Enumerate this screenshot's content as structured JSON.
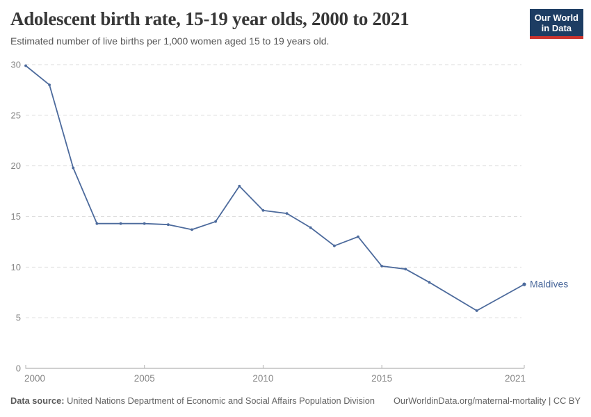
{
  "header": {
    "title": "Adolescent birth rate, 15-19 year olds, 2000 to 2021",
    "subtitle": "Estimated number of live births per 1,000 women aged 15 to 19 years old."
  },
  "logo": {
    "line1": "Our World",
    "line2": "in Data",
    "bg_color": "#1d3d63",
    "bar_color": "#cb342e"
  },
  "footer": {
    "source_label": "Data source:",
    "source_text": " United Nations Department of Economic and Social Affairs Population Division",
    "attribution": "OurWorldinData.org/maternal-mortality | CC BY"
  },
  "chart_data": {
    "type": "line",
    "title": "Adolescent birth rate, 15-19 year olds, 2000 to 2021",
    "subtitle": "Estimated number of live births per 1,000 women aged 15 to 19 years old.",
    "xlabel": "",
    "ylabel": "",
    "xlim": [
      2000,
      2021
    ],
    "ylim": [
      0,
      30
    ],
    "x_ticks": [
      2000,
      2005,
      2010,
      2015,
      2021
    ],
    "y_ticks": [
      0,
      5,
      10,
      15,
      20,
      25,
      30
    ],
    "grid": "horizontal dashed gridlines, no vertical grid",
    "legend_position": "label at end of line",
    "series": [
      {
        "name": "Maldives",
        "color": "#4c6a9c",
        "points": [
          [
            2000,
            29.9
          ],
          [
            2001,
            28.0
          ],
          [
            2002,
            19.8
          ],
          [
            2003,
            14.3
          ],
          [
            2004,
            14.3
          ],
          [
            2005,
            14.3
          ],
          [
            2006,
            14.2
          ],
          [
            2007,
            13.7
          ],
          [
            2008,
            14.5
          ],
          [
            2009,
            18.0
          ],
          [
            2010,
            15.6
          ],
          [
            2011,
            15.3
          ],
          [
            2012,
            13.9
          ],
          [
            2013,
            12.1
          ],
          [
            2014,
            13.0
          ],
          [
            2015,
            10.1
          ],
          [
            2016,
            9.8
          ],
          [
            2017,
            8.5
          ],
          [
            2019,
            5.7
          ],
          [
            2021,
            8.3
          ]
        ]
      }
    ],
    "colors": {
      "line": "#4c6a9c",
      "gridline": "#dedede",
      "axis": "#a1a1a1",
      "tick_mark": "#b3b3b3",
      "tick_label": "#858585"
    }
  }
}
